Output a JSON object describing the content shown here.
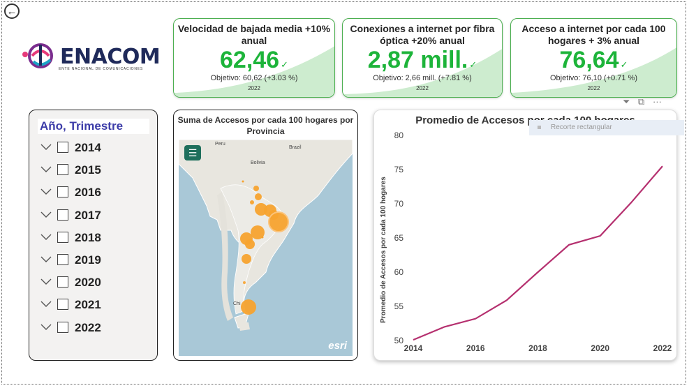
{
  "nav": {
    "back_icon": "arrow-left-circle-icon"
  },
  "logo": {
    "name": "ENACOM",
    "subtitle": "ENTE NACIONAL DE COMUNICACIONES"
  },
  "kpis": [
    {
      "title": "Velocidad de bajada media +10% anual",
      "value": "62,46",
      "goal": "Objetivo: 60,62 (+3.03 %)",
      "year": "2022",
      "status_icon": "check-icon"
    },
    {
      "title": "Conexiones a internet por fibra óptica +20% anual",
      "value": "2,87 mill.",
      "goal": "Objetivo: 2,66 mill. (+7.81 %)",
      "year": "2022",
      "status_icon": "check-icon"
    },
    {
      "title": "Acceso a internet por cada 100 hogares + 3% anual",
      "value": "76,64",
      "goal": "Objetivo: 76,10 (+0.71 %)",
      "year": "2022",
      "status_icon": "check-icon"
    }
  ],
  "slicer": {
    "header": "Año, Trimestre",
    "items": [
      "2014",
      "2015",
      "2016",
      "2017",
      "2018",
      "2019",
      "2020",
      "2021",
      "2022"
    ]
  },
  "map": {
    "title": "Suma de Accesos por cada 100 hogares por Provincia",
    "labels": {
      "peru": "Peru",
      "brazil": "Brazil",
      "bolivia": "Bolivia",
      "chile": "Chi"
    },
    "attribution": "esri",
    "menu_icon": "hamburger-menu-icon"
  },
  "toolbar": {
    "icons": [
      "filter-icon",
      "focus-mode-icon",
      "more-options-icon"
    ]
  },
  "tooltip": {
    "text": "Recorte rectangular"
  },
  "chart_data": {
    "type": "line",
    "title": "Promedio de Accesos por cada 100 hogares",
    "xlabel": "",
    "ylabel": "Promedio de Accesos por cada 100 hogares",
    "x": [
      2014,
      2015,
      2016,
      2017,
      2018,
      2019,
      2020,
      2021,
      2022
    ],
    "series": [
      {
        "values": [
          50.1,
          52.0,
          53.2,
          55.9,
          60.0,
          64.0,
          65.3,
          70.2,
          75.5
        ]
      }
    ],
    "x_ticks": [
      "2014",
      "2016",
      "2018",
      "2020",
      "2022"
    ],
    "y_ticks": [
      "50",
      "55",
      "60",
      "65",
      "70",
      "75",
      "80"
    ],
    "ylim": [
      50,
      80
    ],
    "xlim": [
      2014,
      2022
    ],
    "line_color": "#b5306f",
    "grid": false
  },
  "colors": {
    "kpi_value": "#1db43a",
    "kpi_border": "#4caf50",
    "bubble": "#f7a32f",
    "map_water": "#a9c8d7",
    "map_land": "#e8e6df"
  }
}
